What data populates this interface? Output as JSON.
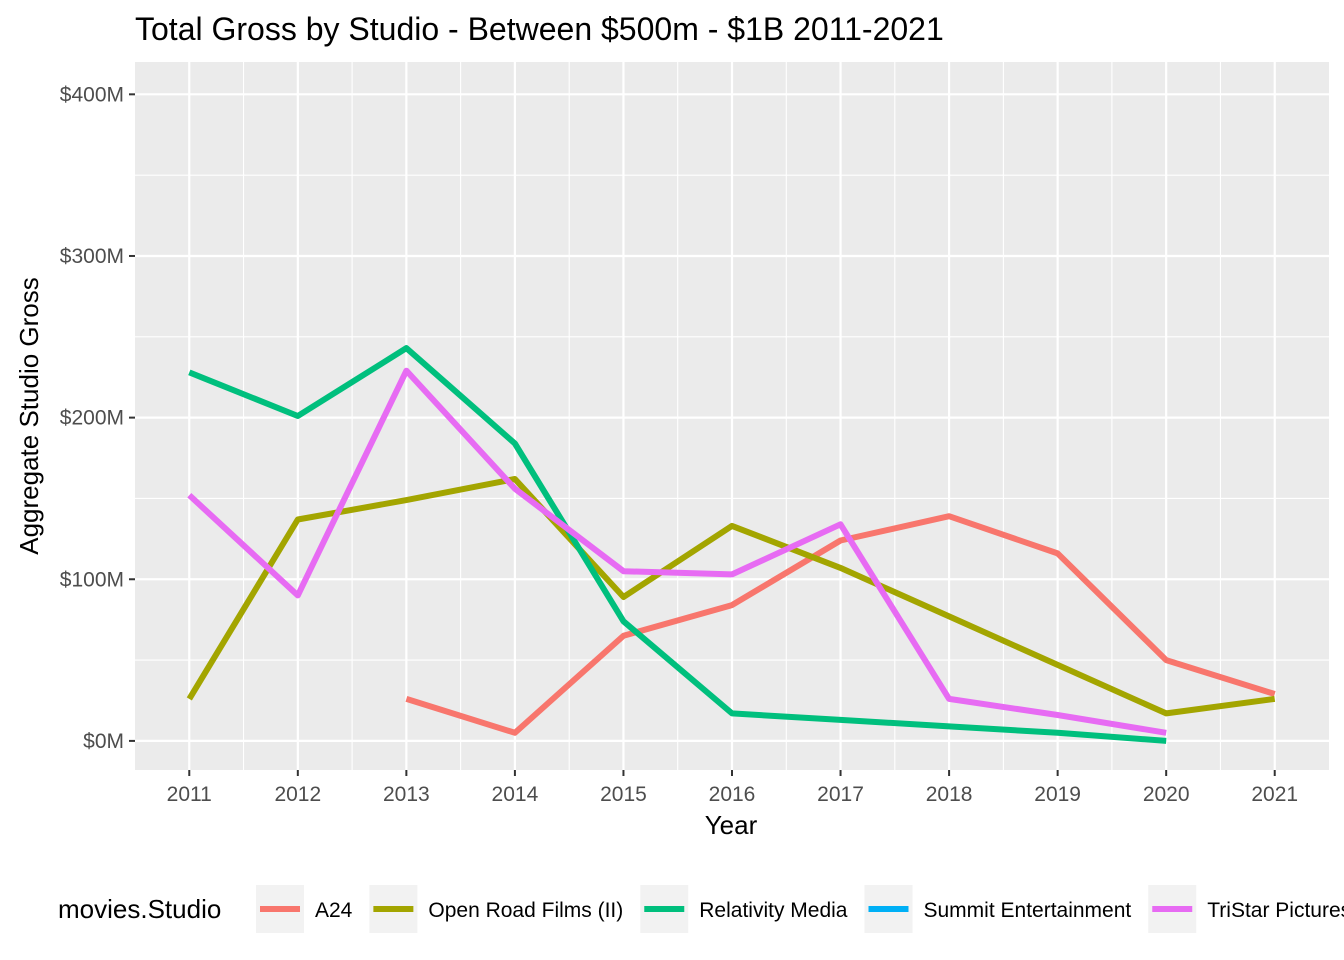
{
  "chart_data": {
    "type": "line",
    "title": "Total Gross by Studio - Between $500m - $1B 2011-2021",
    "xlabel": "Year",
    "ylabel": "Aggregate Studio Gross",
    "x": [
      2011,
      2012,
      2013,
      2014,
      2015,
      2016,
      2017,
      2018,
      2019,
      2020,
      2021
    ],
    "xlim": [
      2010.5,
      2021.5
    ],
    "ylim": [
      -18,
      420
    ],
    "y_ticks": [
      0,
      100,
      200,
      300,
      400
    ],
    "y_tick_labels": [
      "$0M",
      "$100M",
      "$200M",
      "$300M",
      "$400M"
    ],
    "y_unit": "millions USD",
    "grid": true,
    "legend_title": "movies.Studio",
    "legend_position": "bottom",
    "series": [
      {
        "name": "A24",
        "color": "#F8766D",
        "values": [
          null,
          null,
          26,
          5,
          65,
          84,
          124,
          139,
          116,
          50,
          29
        ]
      },
      {
        "name": "Open Road Films (II)",
        "color": "#A3A500",
        "values": [
          26,
          137,
          149,
          162,
          89,
          133,
          107,
          77,
          47,
          17,
          26
        ]
      },
      {
        "name": "Relativity Media",
        "color": "#00BF7D",
        "values": [
          228,
          201,
          243,
          184,
          74,
          17,
          13,
          9,
          5,
          0,
          null
        ]
      },
      {
        "name": "Summit Entertainment",
        "color": "#00B0F6",
        "values": [
          null,
          null,
          null,
          null,
          null,
          null,
          null,
          null,
          null,
          null,
          null
        ]
      },
      {
        "name": "TriStar Pictures",
        "color": "#E76BF3",
        "values": [
          152,
          90,
          229,
          156,
          105,
          103,
          134,
          26,
          16,
          5,
          null
        ]
      }
    ]
  }
}
